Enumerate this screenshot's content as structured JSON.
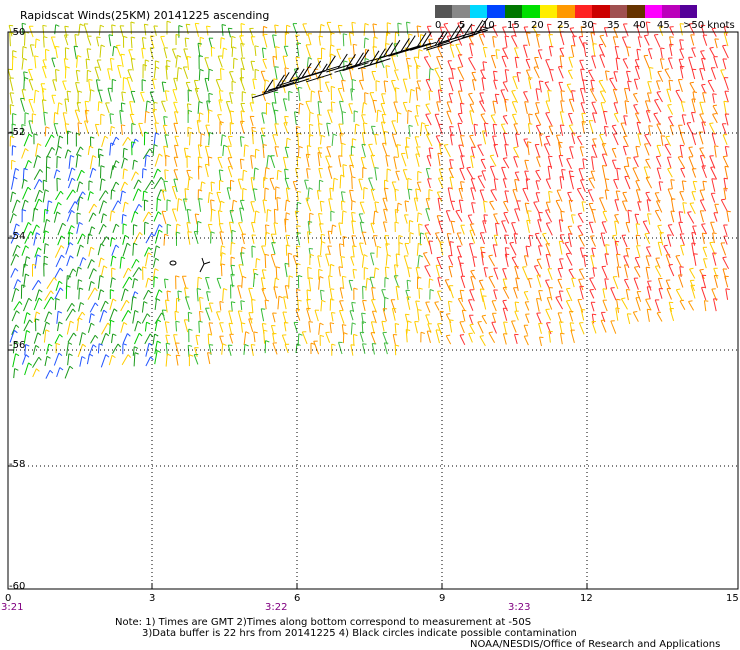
{
  "title": "Rapidscat Winds(25KM) 20141225 ascending",
  "legend": {
    "labels": [
      "0",
      "5",
      "10",
      "15",
      "20",
      "25",
      "30",
      "35",
      "40",
      "45",
      ">50 knots"
    ],
    "colors": [
      "#555555",
      "#888888",
      "#00d8ff",
      "#0044ff",
      "#007700",
      "#00e000",
      "#ffee00",
      "#ff9900",
      "#ff2222",
      "#cc0000",
      "#a05050",
      "#663300",
      "#ff00ff",
      "#bb00bb",
      "#550099"
    ]
  },
  "y_axis": {
    "labels": [
      "-50",
      "-52",
      "-54",
      "-56",
      "-58",
      "-60"
    ]
  },
  "x_axis": {
    "labels": [
      "0",
      "3",
      "6",
      "9",
      "12",
      "15"
    ],
    "time_labels": [
      "3:21",
      "3:22",
      "3:23"
    ]
  },
  "notes": {
    "line1": "Note: 1) Times are GMT 2)Times along bottom correspond to measurement at -50S",
    "line2": "3)Data buffer is 22 hrs from 20141225 4) Black circles indicate possible contamination",
    "line3": "NOAA/NESDIS/Office of Research and Applications"
  }
}
